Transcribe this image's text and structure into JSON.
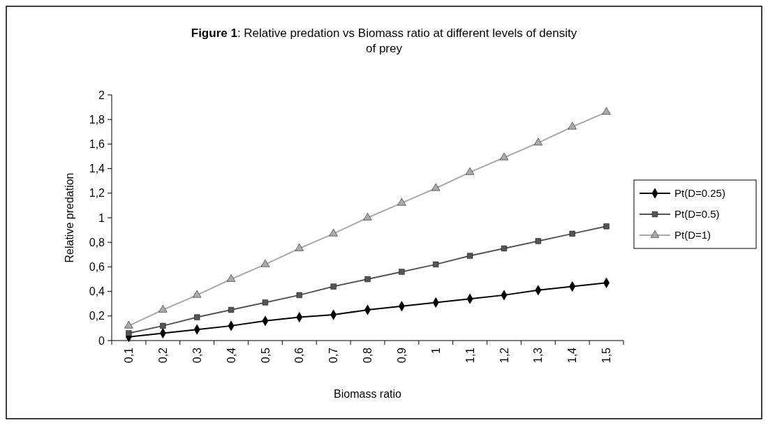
{
  "chart_data": {
    "type": "line",
    "title": "Figure 1: Relative predation vs Biomass ratio at different levels of density of prey",
    "xlabel": "Biomass ratio",
    "ylabel": "Relative predation",
    "categories": [
      "0,1",
      "0,2",
      "0,3",
      "0,4",
      "0,5",
      "0,6",
      "0,7",
      "0,8",
      "0,9",
      "1",
      "1,1",
      "1,2",
      "1,3",
      "1,4",
      "1,5"
    ],
    "ylim": [
      0,
      2
    ],
    "yticks": [
      0,
      {
        "value": 0.2,
        "label": "0,2"
      },
      {
        "value": 0.4,
        "label": "0,4"
      },
      {
        "value": 0.6,
        "label": "0,6"
      },
      {
        "value": 0.8,
        "label": "0,8"
      },
      1,
      {
        "value": 1.2,
        "label": "1,2"
      },
      {
        "value": 1.4,
        "label": "1,4"
      },
      {
        "value": 1.6,
        "label": "1,6"
      },
      {
        "value": 1.8,
        "label": "1,8"
      },
      2
    ],
    "grid": false,
    "legend": "right",
    "line_style": "solid",
    "series": [
      {
        "name": "Pt(D=0.25)",
        "color": "#000000",
        "marker": "diamond",
        "values": [
          0.03,
          0.06,
          0.09,
          0.12,
          0.16,
          0.19,
          0.21,
          0.25,
          0.28,
          0.31,
          0.34,
          0.37,
          0.41,
          0.44,
          0.47
        ]
      },
      {
        "name": "Pt(D=0.5)",
        "color": "#555555",
        "marker": "square",
        "values": [
          0.06,
          0.12,
          0.19,
          0.25,
          0.31,
          0.37,
          0.44,
          0.5,
          0.56,
          0.62,
          0.69,
          0.75,
          0.81,
          0.87,
          0.93
        ]
      },
      {
        "name": "Pt(D=1)",
        "color": "#aaaaaa",
        "marker": "triangle",
        "values": [
          0.12,
          0.25,
          0.37,
          0.5,
          0.62,
          0.75,
          0.87,
          1.0,
          1.12,
          1.24,
          1.37,
          1.49,
          1.61,
          1.74,
          1.86
        ]
      }
    ]
  }
}
